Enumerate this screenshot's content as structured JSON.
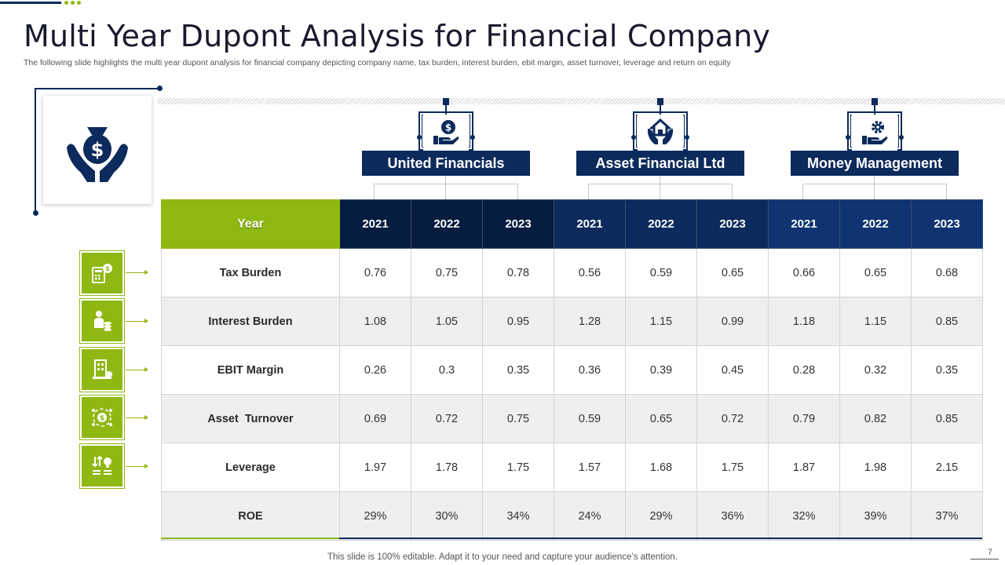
{
  "slide": {
    "title": "Multi Year Dupont Analysis for Financial Company",
    "subtitle": "The following slide highlights the multi year dupont analysis for financial company depicting company name, tax burden, interest burden, ebit margin, asset turnover, leverage and return on equity",
    "footer": "This slide is 100% editable. Adapt it to your need and capture your audience’s attention.",
    "page_number": "7"
  },
  "colors": {
    "navy": "#0c2a5b",
    "green": "#8fb812",
    "row_alt": "#efefef"
  },
  "main_icon": "money-bag-hands-icon",
  "companies": [
    {
      "name": "United Financials",
      "icon": "dollar-coin-hand-icon"
    },
    {
      "name": "Asset Financial Ltd",
      "icon": "house-hands-icon"
    },
    {
      "name": "Money Management",
      "icon": "gear-hand-icon"
    }
  ],
  "table": {
    "year_header": "Year",
    "years": [
      "2021",
      "2022",
      "2023",
      "2021",
      "2022",
      "2023",
      "2021",
      "2022",
      "2023"
    ],
    "rows": [
      {
        "label": "Tax Burden",
        "icon": "calculator-coin-icon",
        "values": [
          "0.76",
          "0.75",
          "0.78",
          "0.56",
          "0.59",
          "0.65",
          "0.66",
          "0.65",
          "0.68"
        ]
      },
      {
        "label": "Interest Burden",
        "icon": "person-coins-icon",
        "values": [
          "1.08",
          "1.05",
          "0.95",
          "1.28",
          "1.15",
          "0.99",
          "1.18",
          "1.15",
          "0.85"
        ]
      },
      {
        "label": "EBIT Margin",
        "icon": "building-coins-icon",
        "values": [
          "0.26",
          "0.3",
          "0.35",
          "0.36",
          "0.39",
          "0.45",
          "0.28",
          "0.32",
          "0.35"
        ]
      },
      {
        "label": "Asset  Turnover",
        "icon": "coin-cycle-icon",
        "values": [
          "0.69",
          "0.72",
          "0.75",
          "0.59",
          "0.65",
          "0.72",
          "0.79",
          "0.82",
          "0.85"
        ]
      },
      {
        "label": "Leverage",
        "icon": "arrows-bulb-icon",
        "values": [
          "1.97",
          "1.78",
          "1.75",
          "1.57",
          "1.68",
          "1.75",
          "1.87",
          "1.98",
          "2.15"
        ]
      },
      {
        "label": "ROE",
        "icon": "",
        "values": [
          "29%",
          "30%",
          "34%",
          "24%",
          "29%",
          "36%",
          "32%",
          "39%",
          "37%"
        ]
      }
    ]
  }
}
